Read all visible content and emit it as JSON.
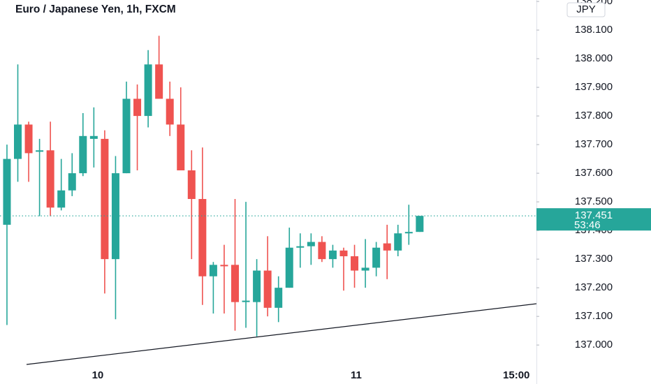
{
  "chart_data": {
    "type": "candlestick",
    "title": "Euro / Japanese Yen, 1h, FXCM",
    "currency": "JPY",
    "categories": [
      null,
      null,
      null,
      null,
      null,
      null,
      null,
      null,
      null,
      null,
      null,
      null,
      null,
      null,
      null,
      null,
      null,
      null,
      null,
      null,
      null,
      null,
      null,
      null,
      null,
      null,
      null,
      null,
      null,
      null,
      null,
      null,
      null,
      null,
      null,
      null,
      null,
      null,
      null
    ],
    "open": [
      137.42,
      137.65,
      137.77,
      137.675,
      137.68,
      137.48,
      137.54,
      137.6,
      137.72,
      137.72,
      137.3,
      137.6,
      137.86,
      137.8,
      137.98,
      137.86,
      137.77,
      137.61,
      137.51,
      137.24,
      137.28,
      137.28,
      137.15,
      137.15,
      137.26,
      137.13,
      137.2,
      137.34,
      137.345,
      137.36,
      137.3,
      137.33,
      137.31,
      137.26,
      137.27,
      137.355,
      137.33,
      137.39,
      137.395
    ],
    "high": [
      137.7,
      137.98,
      137.78,
      137.72,
      137.78,
      137.65,
      137.67,
      137.81,
      137.83,
      137.75,
      137.66,
      137.92,
      137.91,
      138.03,
      138.08,
      137.92,
      137.9,
      137.68,
      137.69,
      137.29,
      137.35,
      137.51,
      137.5,
      137.3,
      137.38,
      137.24,
      137.41,
      137.39,
      137.39,
      137.38,
      137.35,
      137.34,
      137.35,
      137.37,
      137.36,
      137.42,
      137.42,
      137.49,
      137.451
    ],
    "low": [
      137.07,
      137.57,
      137.57,
      137.45,
      137.45,
      137.47,
      137.52,
      137.59,
      137.62,
      137.18,
      137.09,
      137.6,
      137.61,
      137.76,
      137.86,
      137.73,
      137.61,
      137.3,
      137.14,
      137.11,
      137.11,
      137.05,
      137.06,
      137.03,
      137.1,
      137.08,
      137.2,
      137.27,
      137.28,
      137.29,
      137.27,
      137.19,
      137.2,
      137.2,
      137.24,
      137.23,
      137.31,
      137.35,
      137.395
    ],
    "close": [
      137.65,
      137.77,
      137.67,
      137.68,
      137.48,
      137.54,
      137.6,
      137.73,
      137.73,
      137.3,
      137.6,
      137.86,
      137.8,
      137.98,
      137.86,
      137.77,
      137.61,
      137.51,
      137.24,
      137.28,
      137.275,
      137.15,
      137.155,
      137.26,
      137.13,
      137.2,
      137.34,
      137.345,
      137.36,
      137.3,
      137.33,
      137.31,
      137.26,
      137.27,
      137.34,
      137.33,
      137.39,
      137.395,
      137.451
    ],
    "up_color": "#26a69a",
    "down_color": "#ef5350",
    "last_price": {
      "value": 137.451,
      "label": "137.451"
    },
    "countdown": "53:46",
    "ylim": [
      136.937,
      138.205
    ],
    "yticks": [
      {
        "value": 137.0,
        "label": "137.000"
      },
      {
        "value": 137.1,
        "label": "137.100"
      },
      {
        "value": 137.2,
        "label": "137.200"
      },
      {
        "value": 137.3,
        "label": "137.300"
      },
      {
        "value": 137.4,
        "label": "137.400"
      },
      {
        "value": 137.5,
        "label": "137.500"
      },
      {
        "value": 137.6,
        "label": "137.600"
      },
      {
        "value": 137.7,
        "label": "137.700"
      },
      {
        "value": 137.8,
        "label": "137.800"
      },
      {
        "value": 137.9,
        "label": "137.900"
      },
      {
        "value": 138.0,
        "label": "138.000"
      },
      {
        "value": 138.1,
        "label": "138.100"
      },
      {
        "value": 138.2,
        "label": "138.200"
      }
    ],
    "xlim": [
      -0.64,
      48.75
    ],
    "xticks": [
      {
        "value": 8.36,
        "label": "10"
      },
      {
        "value": 32.15,
        "label": "11"
      },
      {
        "value": 46.9,
        "label": "15:00"
      }
    ]
  }
}
